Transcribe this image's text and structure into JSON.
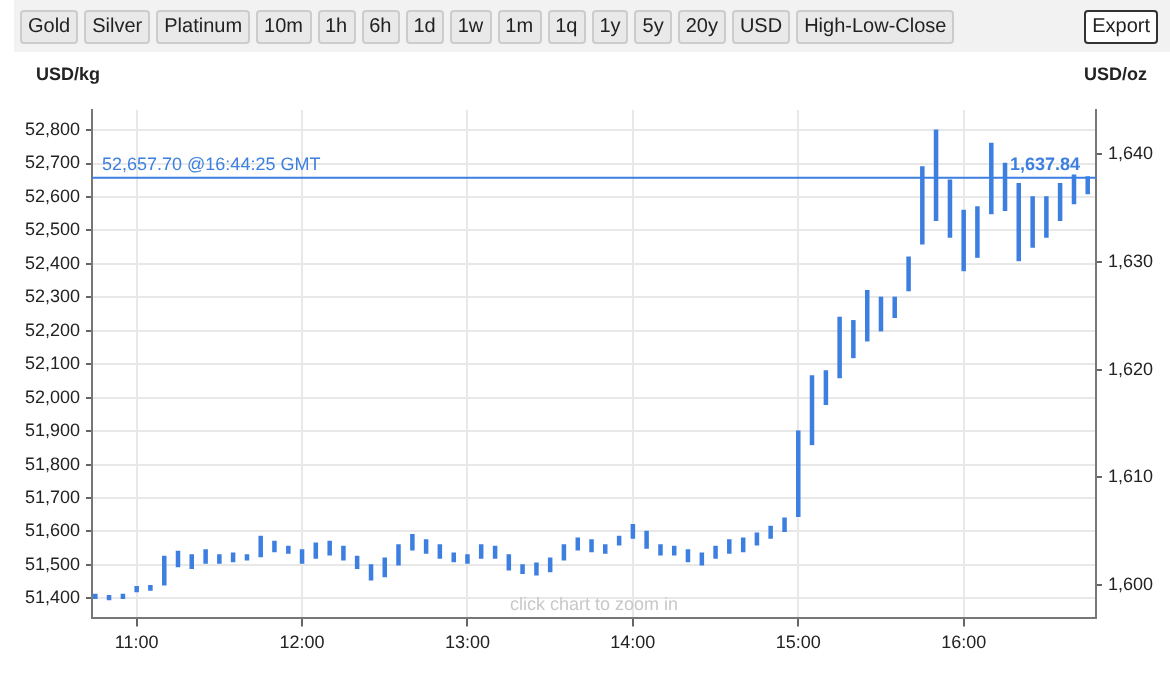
{
  "chart_data": {
    "type": "bar",
    "ylabel": "USD/kg",
    "y2label": "USD/oz",
    "annotations": [
      "Gold",
      "Silver",
      "Platinum",
      "10m",
      "1h",
      "6h",
      "1d",
      "1w",
      "1m",
      "1q",
      "1y",
      "5y",
      "20y",
      "USD",
      "High-Low-Close",
      "Export",
      "click chart to zoom in",
      {
        "text": "1,637.84",
        "x": 16.28,
        "y": 52657.7
      }
    ],
    "x": [
      10.75,
      10.833,
      10.917,
      11.0,
      11.083,
      11.167,
      11.25,
      11.333,
      11.417,
      11.5,
      11.583,
      11.667,
      11.75,
      11.833,
      11.917,
      12.0,
      12.083,
      12.167,
      12.25,
      12.333,
      12.417,
      12.5,
      12.583,
      12.667,
      12.75,
      12.833,
      12.917,
      13.0,
      13.083,
      13.167,
      13.25,
      13.333,
      13.417,
      13.5,
      13.583,
      13.667,
      13.75,
      13.833,
      13.917,
      14.0,
      14.083,
      14.167,
      14.25,
      14.333,
      14.417,
      14.5,
      14.583,
      14.667,
      14.75,
      14.833,
      14.917,
      15.0,
      15.083,
      15.167,
      15.25,
      15.333,
      15.417,
      15.5,
      15.583,
      15.667,
      15.75,
      15.833,
      15.917,
      16.0,
      16.083,
      16.167,
      16.25,
      16.333,
      16.417,
      16.5,
      16.583,
      16.667,
      16.75
    ],
    "base": [
      51400,
      51396,
      51400,
      51420,
      51425,
      51440,
      51495,
      51490,
      51505,
      51505,
      51510,
      51515,
      51525,
      51540,
      51535,
      51505,
      51520,
      51530,
      51515,
      51490,
      51455,
      51465,
      51500,
      51545,
      51535,
      51520,
      51510,
      51505,
      51520,
      51520,
      51485,
      51475,
      51470,
      51480,
      51515,
      51545,
      51540,
      51535,
      51560,
      51580,
      51550,
      51530,
      51530,
      51510,
      51500,
      51520,
      51535,
      51540,
      51560,
      51580,
      51600,
      51645,
      51860,
      51980,
      52060,
      52120,
      52170,
      52200,
      52240,
      52320,
      52460,
      52530,
      52480,
      52380,
      52420,
      52550,
      52560,
      52410,
      52450,
      52480,
      52530,
      52580,
      52610
    ],
    "values": [
      12,
      12,
      12,
      15,
      13,
      85,
      45,
      40,
      40,
      25,
      25,
      15,
      60,
      30,
      20,
      40,
      45,
      40,
      40,
      35,
      45,
      55,
      60,
      45,
      40,
      40,
      25,
      25,
      40,
      35,
      45,
      25,
      35,
      40,
      45,
      35,
      35,
      25,
      25,
      40,
      50,
      30,
      25,
      35,
      35,
      35,
      40,
      40,
      35,
      35,
      40,
      255,
      205,
      100,
      180,
      110,
      150,
      100,
      60,
      100,
      230,
      270,
      170,
      180,
      150,
      210,
      140,
      230,
      150,
      120,
      110,
      85,
      50
    ],
    "color": "#3d7fe0",
    "xlim": [
      10.73,
      16.8
    ],
    "xticks": [
      {
        "value": 11,
        "label": "11:00"
      },
      {
        "value": 12,
        "label": "12:00"
      },
      {
        "value": 13,
        "label": "13:00"
      },
      {
        "value": 14,
        "label": "14:00"
      },
      {
        "value": 15,
        "label": "15:00"
      },
      {
        "value": 16,
        "label": "16:00"
      }
    ],
    "ylim": [
      51340,
      52860
    ],
    "yticks": [
      {
        "value": 51400,
        "label": "51,400"
      },
      {
        "value": 51500,
        "label": "51,500"
      },
      {
        "value": 51600,
        "label": "51,600"
      },
      {
        "value": 51700,
        "label": "51,700"
      },
      {
        "value": 51800,
        "label": "51,800"
      },
      {
        "value": 51900,
        "label": "51,900"
      },
      {
        "value": 52000,
        "label": "52,000"
      },
      {
        "value": 52100,
        "label": "52,100"
      },
      {
        "value": 52200,
        "label": "52,200"
      },
      {
        "value": 52300,
        "label": "52,300"
      },
      {
        "value": 52400,
        "label": "52,400"
      },
      {
        "value": 52500,
        "label": "52,500"
      },
      {
        "value": 52600,
        "label": "52,600"
      },
      {
        "value": 52700,
        "label": "52,700"
      },
      {
        "value": 52800,
        "label": "52,800"
      }
    ],
    "y2lim": [
      1596.9,
      1644.1
    ],
    "y2ticks": [
      {
        "value": 1600,
        "label": "1,600"
      },
      {
        "value": 1610,
        "label": "1,610"
      },
      {
        "value": 1620,
        "label": "1,620"
      },
      {
        "value": 1630,
        "label": "1,630"
      },
      {
        "value": 1640,
        "label": "1,640"
      }
    ],
    "ref_lines": [
      {
        "axis": "y",
        "value": 52657.7,
        "label": "52,657.70 @16:44:25 GMT",
        "color": "#3d7fe0"
      }
    ],
    "grid": true,
    "legend": false
  }
}
